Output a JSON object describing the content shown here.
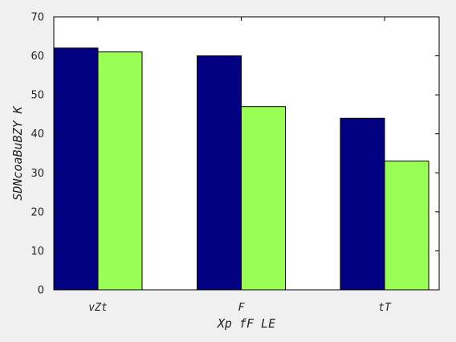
{
  "colors": {
    "series_1": "#000080",
    "series_2": "#99ff55",
    "plot_background": "#ffffff",
    "figure_background": "#f0f0f0",
    "axis_color": "#000000"
  },
  "chart_data": {
    "type": "bar",
    "title": "",
    "xlabel": "Xp fF LE",
    "ylabel": "SDNcoaBuBZY  K",
    "categories": [
      "vZt",
      "F",
      "tT"
    ],
    "series": [
      {
        "values": [
          62,
          60,
          44
        ]
      },
      {
        "values": [
          61,
          47,
          33
        ]
      }
    ],
    "ylim": [
      0,
      70
    ],
    "yticks": [
      0,
      10,
      20,
      30,
      40,
      50,
      60,
      70
    ],
    "grid": false
  }
}
